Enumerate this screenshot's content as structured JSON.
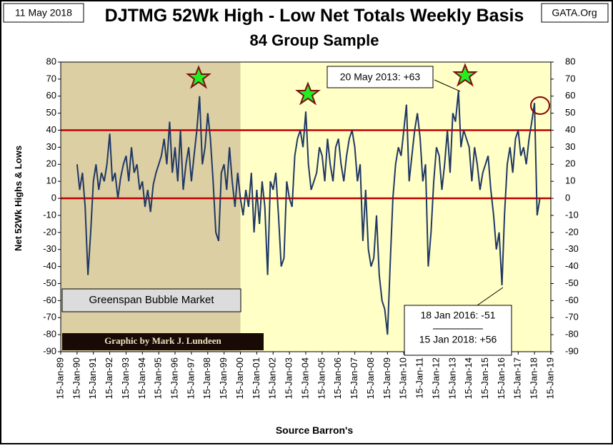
{
  "chart_data": {
    "type": "line",
    "title": "DJTMG 52Wk High - Low Net Totals Weekly Basis",
    "subtitle": "84 Group Sample",
    "date_label": "11 May 2018",
    "source_site": "GATA.Org",
    "ylabel": "Net 52Wk Highs & Lows",
    "xlabel": "Source Barron's",
    "annotations": [
      "20 May 2013: +63",
      "18 Jan 2016: -51",
      "15 Jan 2018: +56",
      "Greenspan Bubble Market",
      "Graphic by Mark J. Lundeen"
    ],
    "shaded_region": [
      "1989-01-15",
      "2000-01-15"
    ],
    "shaded_color": "#dccfa3",
    "background_color": "#ffffc6",
    "reference_lines": [
      40,
      0
    ],
    "reference_color": "#c00000",
    "ylim": [
      -90,
      80
    ],
    "yticks": [
      -90,
      -80,
      -70,
      -60,
      -50,
      -40,
      -30,
      -20,
      -10,
      0,
      10,
      20,
      30,
      40,
      50,
      60,
      70,
      80
    ],
    "xlim": [
      "1989-01-15",
      "2019-01-15"
    ],
    "xticks": [
      {
        "value": "1989-01-15",
        "label": "15-Jan-89"
      },
      {
        "value": "1990-01-15",
        "label": "15-Jan-90"
      },
      {
        "value": "1991-01-15",
        "label": "15-Jan-91"
      },
      {
        "value": "1992-01-15",
        "label": "15-Jan-92"
      },
      {
        "value": "1993-01-15",
        "label": "15-Jan-93"
      },
      {
        "value": "1994-01-15",
        "label": "15-Jan-94"
      },
      {
        "value": "1995-01-15",
        "label": "15-Jan-95"
      },
      {
        "value": "1996-01-15",
        "label": "15-Jan-96"
      },
      {
        "value": "1997-01-15",
        "label": "15-Jan-97"
      },
      {
        "value": "1998-01-15",
        "label": "15-Jan-98"
      },
      {
        "value": "1999-01-15",
        "label": "15-Jan-99"
      },
      {
        "value": "2000-01-15",
        "label": "15-Jan-00"
      },
      {
        "value": "2001-01-15",
        "label": "15-Jan-01"
      },
      {
        "value": "2002-01-15",
        "label": "15-Jan-02"
      },
      {
        "value": "2003-01-15",
        "label": "15-Jan-03"
      },
      {
        "value": "2004-01-15",
        "label": "15-Jan-04"
      },
      {
        "value": "2005-01-15",
        "label": "15-Jan-05"
      },
      {
        "value": "2006-01-15",
        "label": "15-Jan-06"
      },
      {
        "value": "2007-01-15",
        "label": "15-Jan-07"
      },
      {
        "value": "2008-01-15",
        "label": "15-Jan-08"
      },
      {
        "value": "2009-01-15",
        "label": "15-Jan-09"
      },
      {
        "value": "2010-01-15",
        "label": "15-Jan-10"
      },
      {
        "value": "2011-01-15",
        "label": "15-Jan-11"
      },
      {
        "value": "2012-01-15",
        "label": "15-Jan-12"
      },
      {
        "value": "2013-01-15",
        "label": "15-Jan-13"
      },
      {
        "value": "2014-01-15",
        "label": "15-Jan-14"
      },
      {
        "value": "2015-01-15",
        "label": "15-Jan-15"
      },
      {
        "value": "2016-01-15",
        "label": "15-Jan-16"
      },
      {
        "value": "2017-01-15",
        "label": "15-Jan-17"
      },
      {
        "value": "2018-01-15",
        "label": "15-Jan-18"
      },
      {
        "value": "2019-01-15",
        "label": "15-Jan-19"
      }
    ],
    "x": [
      "1990-01-15",
      "1990-03-15",
      "1990-05-15",
      "1990-07-15",
      "1990-09-15",
      "1990-11-15",
      "1991-01-15",
      "1991-03-15",
      "1991-05-15",
      "1991-07-15",
      "1991-09-15",
      "1991-11-15",
      "1992-01-15",
      "1992-03-15",
      "1992-05-15",
      "1992-07-15",
      "1992-09-15",
      "1992-11-15",
      "1993-01-15",
      "1993-03-15",
      "1993-05-15",
      "1993-07-15",
      "1993-09-15",
      "1993-11-15",
      "1994-01-15",
      "1994-03-15",
      "1994-05-15",
      "1994-07-15",
      "1994-09-15",
      "1994-11-15",
      "1995-01-15",
      "1995-03-15",
      "1995-05-15",
      "1995-07-15",
      "1995-09-15",
      "1995-11-15",
      "1996-01-15",
      "1996-03-15",
      "1996-05-15",
      "1996-07-15",
      "1996-09-15",
      "1996-11-15",
      "1997-01-15",
      "1997-03-15",
      "1997-05-15",
      "1997-07-15",
      "1997-09-15",
      "1997-11-15",
      "1998-01-15",
      "1998-03-15",
      "1998-05-15",
      "1998-07-15",
      "1998-09-15",
      "1998-11-15",
      "1999-01-15",
      "1999-03-15",
      "1999-05-15",
      "1999-07-15",
      "1999-09-15",
      "1999-11-15",
      "2000-01-15",
      "2000-03-15",
      "2000-05-15",
      "2000-07-15",
      "2000-09-15",
      "2000-11-15",
      "2001-01-15",
      "2001-03-15",
      "2001-05-15",
      "2001-07-15",
      "2001-09-15",
      "2001-11-15",
      "2002-01-15",
      "2002-03-15",
      "2002-05-15",
      "2002-07-15",
      "2002-09-15",
      "2002-11-15",
      "2003-01-15",
      "2003-03-15",
      "2003-05-15",
      "2003-07-15",
      "2003-09-15",
      "2003-11-15",
      "2004-01-15",
      "2004-03-15",
      "2004-05-15",
      "2004-07-15",
      "2004-09-15",
      "2004-11-15",
      "2005-01-15",
      "2005-03-15",
      "2005-05-15",
      "2005-07-15",
      "2005-09-15",
      "2005-11-15",
      "2006-01-15",
      "2006-03-15",
      "2006-05-15",
      "2006-07-15",
      "2006-09-15",
      "2006-11-15",
      "2007-01-15",
      "2007-03-15",
      "2007-05-15",
      "2007-07-15",
      "2007-09-15",
      "2007-11-15",
      "2008-01-15",
      "2008-03-15",
      "2008-05-15",
      "2008-07-15",
      "2008-09-15",
      "2008-11-15",
      "2009-01-15",
      "2009-03-15",
      "2009-05-15",
      "2009-07-15",
      "2009-09-15",
      "2009-11-15",
      "2010-01-15",
      "2010-03-15",
      "2010-05-15",
      "2010-07-15",
      "2010-09-15",
      "2010-11-15",
      "2011-01-15",
      "2011-03-15",
      "2011-05-15",
      "2011-07-15",
      "2011-09-15",
      "2011-11-15",
      "2012-01-15",
      "2012-03-15",
      "2012-05-15",
      "2012-07-15",
      "2012-09-15",
      "2012-11-15",
      "2013-01-15",
      "2013-03-15",
      "2013-05-20",
      "2013-07-15",
      "2013-09-15",
      "2013-11-15",
      "2014-01-15",
      "2014-03-15",
      "2014-05-15",
      "2014-07-15",
      "2014-09-15",
      "2014-11-15",
      "2015-01-15",
      "2015-03-15",
      "2015-05-15",
      "2015-07-15",
      "2015-09-15",
      "2015-11-15",
      "2016-01-18",
      "2016-03-15",
      "2016-05-15",
      "2016-07-15",
      "2016-09-15",
      "2016-11-15",
      "2017-01-15",
      "2017-03-15",
      "2017-05-15",
      "2017-07-15",
      "2017-09-15",
      "2017-11-15",
      "2018-01-15",
      "2018-03-15",
      "2018-05-15"
    ],
    "series": [
      {
        "name": "DJTMG",
        "color": "#1f3864",
        "values": [
          20,
          5,
          15,
          -5,
          -45,
          -20,
          10,
          20,
          5,
          15,
          10,
          20,
          38,
          10,
          15,
          0,
          12,
          20,
          25,
          10,
          30,
          15,
          20,
          5,
          10,
          -5,
          5,
          -8,
          8,
          15,
          20,
          25,
          35,
          20,
          45,
          15,
          30,
          10,
          40,
          5,
          20,
          30,
          10,
          25,
          40,
          60,
          20,
          30,
          50,
          35,
          10,
          -20,
          -25,
          15,
          20,
          5,
          30,
          10,
          -5,
          15,
          0,
          -10,
          5,
          -5,
          15,
          -20,
          5,
          -15,
          10,
          -5,
          -45,
          10,
          5,
          15,
          -10,
          -40,
          -35,
          10,
          0,
          -5,
          25,
          35,
          40,
          30,
          51,
          20,
          5,
          10,
          15,
          30,
          25,
          10,
          35,
          20,
          10,
          30,
          35,
          20,
          10,
          25,
          35,
          40,
          30,
          10,
          20,
          -25,
          5,
          -30,
          -40,
          -35,
          -10,
          -45,
          -60,
          -65,
          -80,
          -40,
          0,
          20,
          30,
          25,
          40,
          55,
          10,
          25,
          40,
          50,
          35,
          10,
          20,
          -40,
          -20,
          10,
          30,
          25,
          5,
          20,
          40,
          15,
          50,
          45,
          63,
          30,
          40,
          35,
          30,
          10,
          30,
          20,
          5,
          15,
          20,
          25,
          5,
          -10,
          -30,
          -20,
          -51,
          -10,
          20,
          30,
          15,
          35,
          40,
          25,
          30,
          20,
          35,
          45,
          56,
          -10,
          0
        ]
      }
    ]
  }
}
